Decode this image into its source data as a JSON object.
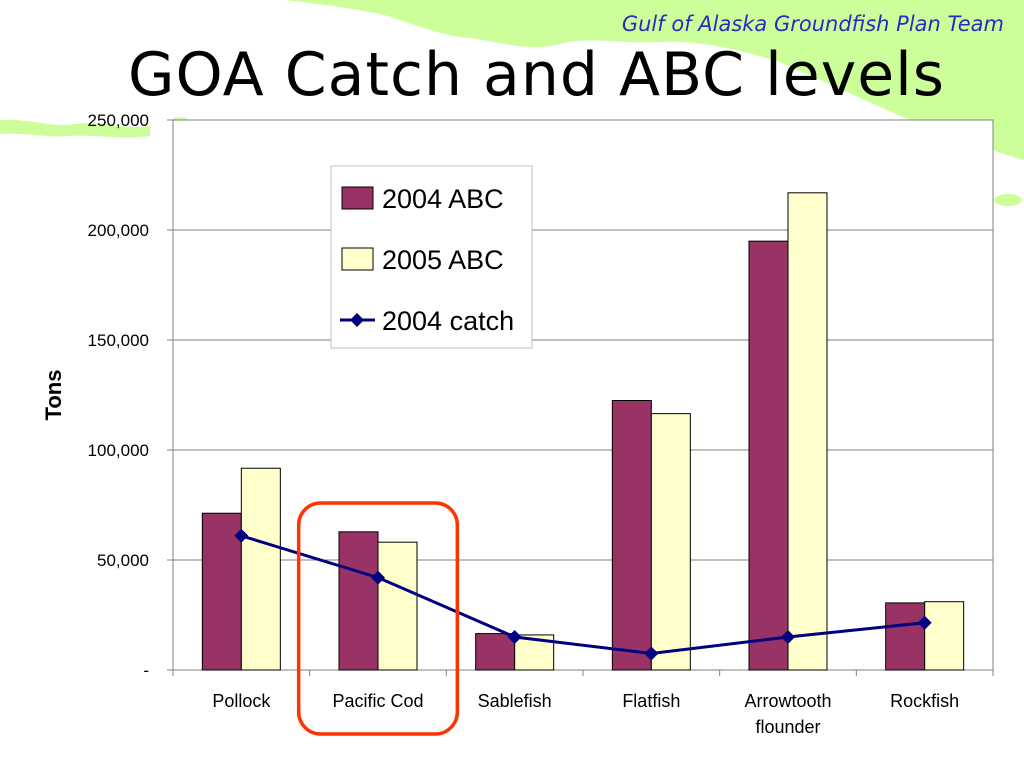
{
  "header": {
    "team": "Gulf of Alaska Groundfish Plan Team"
  },
  "chart_data": {
    "type": "bar",
    "title": "GOA Catch and ABC levels",
    "ylabel": "Tons",
    "xlabel": "",
    "ylim": [
      0,
      250000
    ],
    "yticks": [
      {
        "value": 0,
        "label": "-"
      },
      {
        "value": 50000,
        "label": "50,000"
      },
      {
        "value": 100000,
        "label": "100,000"
      },
      {
        "value": 150000,
        "label": "150,000"
      },
      {
        "value": 200000,
        "label": "200,000"
      },
      {
        "value": 250000,
        "label": "250,000"
      }
    ],
    "categories": [
      [
        "Pollock"
      ],
      [
        "Pacific Cod"
      ],
      [
        "Sablefish"
      ],
      [
        "Flatfish"
      ],
      [
        "Arrowtooth",
        "flounder"
      ],
      [
        "Rockfish"
      ]
    ],
    "series": [
      {
        "name": "2004 ABC",
        "kind": "bar",
        "color": "#993366",
        "values": [
          71260,
          62810,
          16550,
          122490,
          194930,
          30500
        ]
      },
      {
        "name": "2005 ABC",
        "kind": "bar",
        "color": "#ffffcc",
        "values": [
          91710,
          58100,
          15940,
          116530,
          216900,
          31050
        ]
      },
      {
        "name": "2004 catch",
        "kind": "line",
        "color": "#000080",
        "values": [
          61000,
          42000,
          15000,
          7500,
          15000,
          21500
        ]
      }
    ],
    "grid": true,
    "legend": "top-center",
    "highlight": {
      "category": "Pacific Cod",
      "color": "#ff3300"
    }
  },
  "colors": {
    "map_land": "#ccff99",
    "frame": "#808080"
  }
}
